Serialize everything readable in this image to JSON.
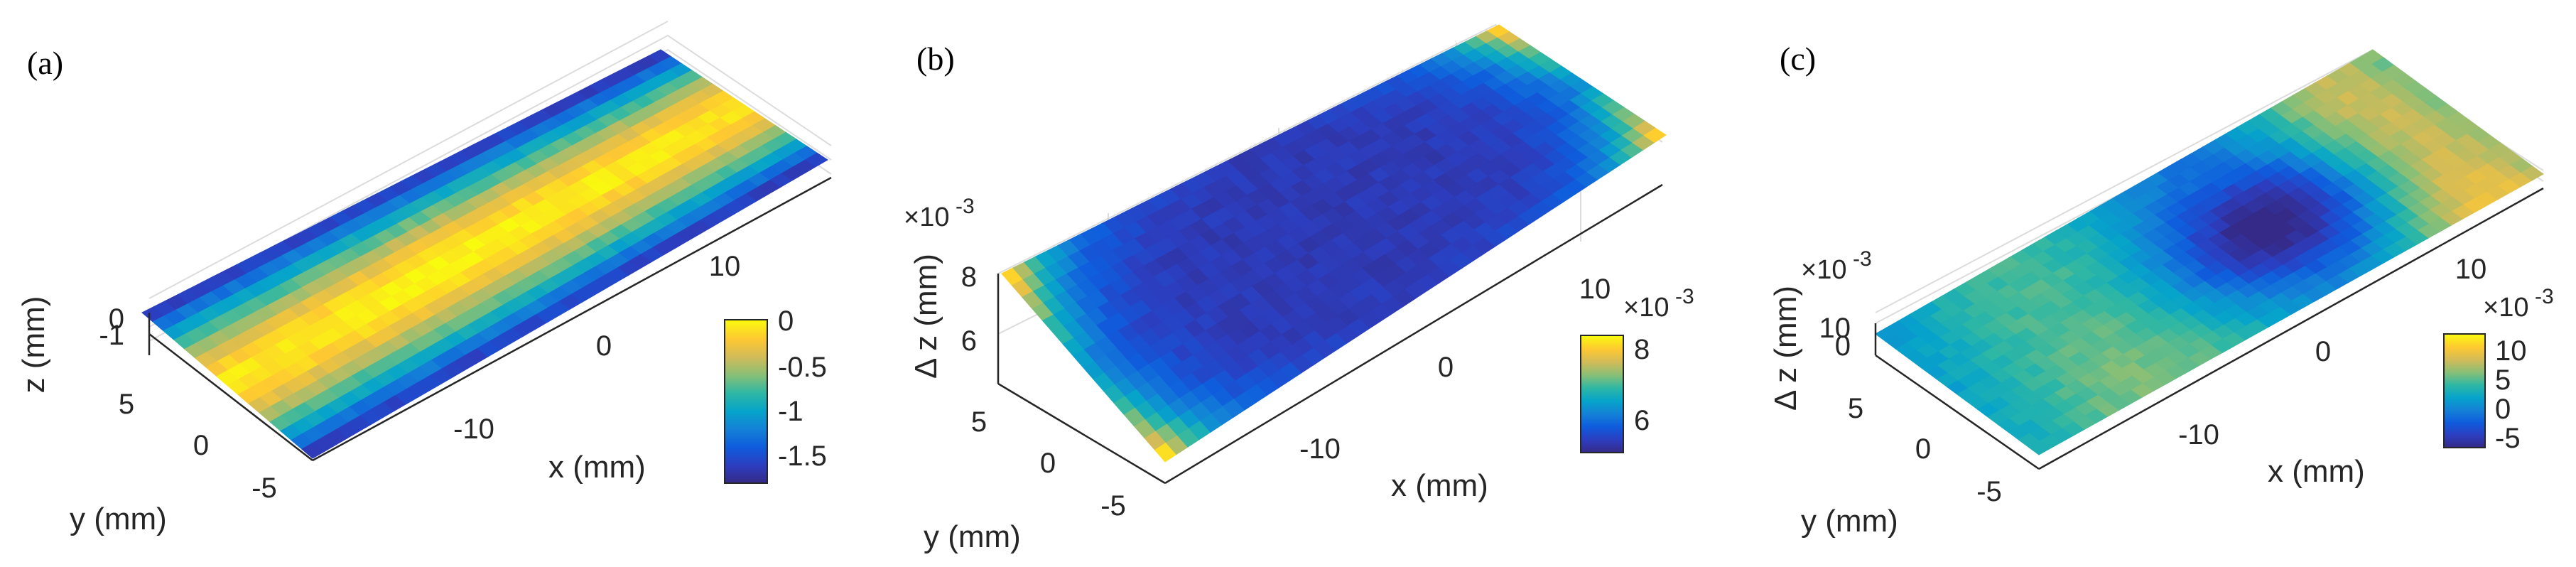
{
  "chart_data": [
    {
      "type": "surface",
      "panel_label": "(a)",
      "xlabel": "x (mm)",
      "ylabel": "y (mm)",
      "zlabel": "z (mm)",
      "x_ticks": [
        "-10",
        "0",
        "10"
      ],
      "y_ticks": [
        "5",
        "0",
        "-5"
      ],
      "z_ticks": [
        "0",
        "-1"
      ],
      "x_range": [
        -17,
        17
      ],
      "y_range": [
        -6,
        6
      ],
      "z_range": [
        -1.8,
        0
      ],
      "grid": true,
      "colormap": "parula",
      "colorbar": {
        "ticks": [
          "0",
          "-0.5",
          "-1",
          "-1.5"
        ],
        "range": [
          -1.8,
          0
        ],
        "exponent": ""
      },
      "surface": {
        "description_values": "cylindrical-like profile, maximum near y=0 (≈0), minimum at y edges (≈-1.7)",
        "center_value": 0,
        "edge_value": -1.7
      }
    },
    {
      "type": "surface",
      "panel_label": "(b)",
      "xlabel": "x (mm)",
      "ylabel": "y (mm)",
      "zlabel": "Δ z (mm)",
      "z_exponent": "×10^-3",
      "x_ticks": [
        "-10",
        "0",
        "10"
      ],
      "y_ticks": [
        "5",
        "0",
        "-5"
      ],
      "z_ticks": [
        "8",
        "6"
      ],
      "x_range": [
        -17,
        17
      ],
      "y_range": [
        -6,
        6
      ],
      "z_range": [
        5.0,
        8.5
      ],
      "grid": true,
      "colormap": "parula",
      "colorbar": {
        "ticks": [
          "8",
          "6"
        ],
        "range": [
          5.0,
          8.5
        ],
        "exponent": "×10^-3"
      },
      "surface": {
        "center_value": 5.3,
        "corner_value": 8.2
      }
    },
    {
      "type": "surface",
      "panel_label": "(c)",
      "xlabel": "x (mm)",
      "ylabel": "y (mm)",
      "zlabel": "Δ z (mm)",
      "z_exponent": "×10^-3",
      "x_ticks": [
        "-10",
        "0",
        "10"
      ],
      "y_ticks": [
        "5",
        "0",
        "-5"
      ],
      "z_ticks": [
        "10",
        "0"
      ],
      "x_range": [
        -17,
        17
      ],
      "y_range": [
        -6,
        6
      ],
      "z_range": [
        -7,
        14
      ],
      "grid": true,
      "colormap": "parula",
      "colorbar": {
        "ticks": [
          "10",
          "5",
          "0",
          "-5"
        ],
        "range": [
          -7,
          14
        ],
        "exponent": "×10^-3"
      },
      "surface": {
        "min_value": -6,
        "max_value": 12
      }
    }
  ],
  "colors": {
    "parula": [
      "#352a87",
      "#2c3ec0",
      "#0f5cdd",
      "#1481d6",
      "#06a4ca",
      "#2eb7a4",
      "#87bf77",
      "#d1bb59",
      "#fec832",
      "#f9fb0e"
    ],
    "axis": "#262626",
    "grid": "#dcdcdc",
    "background": "#ffffff"
  }
}
